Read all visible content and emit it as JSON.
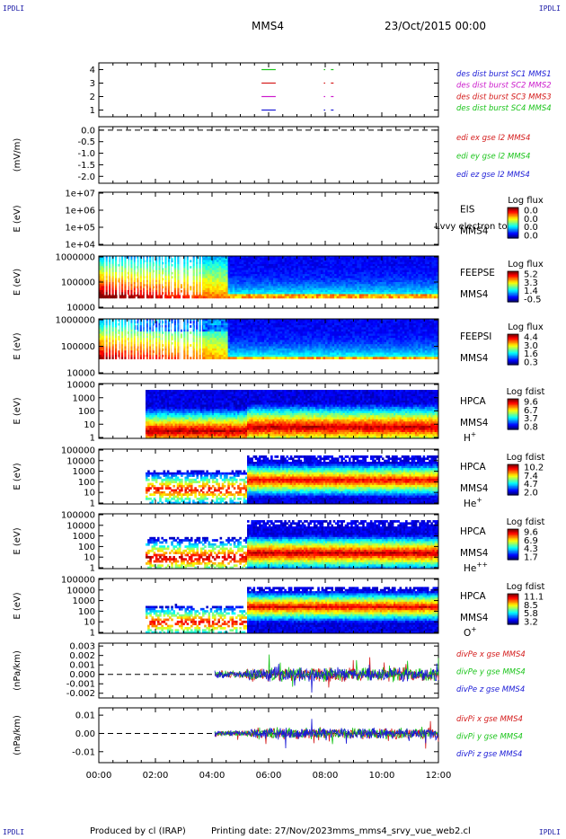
{
  "header": {
    "corner_label": "IPDLI",
    "spacecraft": "MMS4",
    "date_time": "23/Oct/2015 00:00"
  },
  "footer": {
    "produced_by": "Produced by cl (IRAP)",
    "printing_date": "Printing date: 27/Nov/2023",
    "file_name": "mms_mms4_srvy_vue_web2.cl"
  },
  "time_axis": {
    "ticks": [
      "00:00",
      "02:00",
      "04:00",
      "06:00",
      "08:00",
      "10:00",
      "12:00"
    ],
    "range_hours": [
      0,
      12
    ]
  },
  "colors": {
    "axis": "#000000",
    "frame": "#000000",
    "mms1": "#1a1ad6",
    "mms2": "#cc1acc",
    "mms3": "#d41a1a",
    "mms4": "#1ac41a",
    "corner": "#1a1aa6"
  },
  "chart_data": [
    {
      "type": "line",
      "id": "burst",
      "ylabel": "",
      "yticks": [
        "4",
        "3",
        "2",
        "1"
      ],
      "ylim": [
        0.5,
        4.5
      ],
      "legend": [
        {
          "text": "des dist burst SC1 MMS1",
          "color": "#1a1ad6"
        },
        {
          "text": "des dist burst SC2 MMS2",
          "color": "#cc1acc"
        },
        {
          "text": "des dist burst SC3 MMS3",
          "color": "#d41a1a"
        },
        {
          "text": "des dist burst SC4 MMS4",
          "color": "#1ac41a"
        }
      ],
      "series": [
        {
          "level": 4,
          "color": "#1ac41a",
          "intervals": [
            [
              5.75,
              6.25
            ],
            [
              7.95,
              8.0
            ],
            [
              8.2,
              8.3
            ]
          ]
        },
        {
          "level": 3,
          "color": "#d41a1a",
          "intervals": [
            [
              5.75,
              6.25
            ],
            [
              7.95,
              8.0
            ],
            [
              8.2,
              8.3
            ]
          ]
        },
        {
          "level": 2,
          "color": "#cc1acc",
          "intervals": [
            [
              5.75,
              6.25
            ],
            [
              7.95,
              8.0
            ],
            [
              8.2,
              8.3
            ]
          ]
        },
        {
          "level": 1,
          "color": "#1a1ad6",
          "intervals": [
            [
              5.75,
              6.25
            ],
            [
              7.95,
              8.0
            ],
            [
              8.2,
              8.3
            ]
          ]
        }
      ]
    },
    {
      "type": "line",
      "id": "edi",
      "ylabel": "(mV/m)",
      "yticks": [
        "0.0",
        "-0.5",
        "-1.0",
        "-1.5",
        "-2.0"
      ],
      "ylim": [
        -2.3,
        0.15
      ],
      "legend": [
        {
          "text": "edi ex gse l2 MMS4",
          "color": "#d41a1a"
        },
        {
          "text": "edi ey gse l2 MMS4",
          "color": "#1ac41a"
        },
        {
          "text": "edi ez gse l2 MMS4",
          "color": "#1a1ad6"
        }
      ],
      "dashed_zero": true
    },
    {
      "type": "heatmap",
      "id": "eis",
      "ylabel": "E (eV)",
      "yticks": [
        "1e+07",
        "1e+06",
        "1e+05",
        "1e+04"
      ],
      "instrument": [
        "EIS",
        "MMS4"
      ],
      "overlay_text": "Lvvy electron to",
      "colorbar": {
        "title": "Log flux",
        "ticks": [
          "0.0",
          "0.0",
          "0.0",
          "0.0"
        ]
      },
      "empty": true
    },
    {
      "type": "heatmap",
      "id": "feepse",
      "ylabel": "E (eV)",
      "yticks": [
        "1000000",
        "100000",
        "10000"
      ],
      "instrument": [
        "FEEPSE",
        "MMS4"
      ],
      "colorbar": {
        "title": "Log flux",
        "ticks": [
          "5.2",
          "3.3",
          "1.4",
          "-0.5"
        ]
      },
      "data_start_hour": 0.0,
      "levels": [
        {
          "from_hour": 0.0,
          "to_hour": 3.0,
          "profile": "hot"
        },
        {
          "from_hour": 3.0,
          "to_hour": 5.2,
          "profile": "transition"
        },
        {
          "from_hour": 5.2,
          "to_hour": 12.0,
          "profile": "cold"
        }
      ]
    },
    {
      "type": "heatmap",
      "id": "feepsi",
      "ylabel": "E (eV)",
      "yticks": [
        "1000000",
        "100000",
        "10000"
      ],
      "instrument": [
        "FEEPSI",
        "MMS4"
      ],
      "colorbar": {
        "title": "Log flux",
        "ticks": [
          "4.4",
          "3.0",
          "1.6",
          "0.3"
        ]
      },
      "data_start_hour": 0.0
    },
    {
      "type": "heatmap",
      "id": "hpca-h",
      "ylabel": "E (eV)",
      "yticks": [
        "10000",
        "1000",
        "100",
        "10",
        "1"
      ],
      "instrument": [
        "HPCA",
        "MMS4"
      ],
      "species": "H",
      "species_sup": "+",
      "colorbar": {
        "title": "Log fdist",
        "ticks": [
          "9.6",
          "6.7",
          "3.7",
          "0.8"
        ]
      },
      "data_start_hour": 1.65
    },
    {
      "type": "heatmap",
      "id": "hpca-he",
      "ylabel": "E (eV)",
      "yticks": [
        "100000",
        "10000",
        "1000",
        "100",
        "10",
        "1"
      ],
      "instrument": [
        "HPCA",
        "MMS4"
      ],
      "species": "He",
      "species_sup": "+",
      "colorbar": {
        "title": "Log fdist",
        "ticks": [
          "10.2",
          "7.4",
          "4.7",
          "2.0"
        ]
      },
      "data_start_hour": 1.65
    },
    {
      "type": "heatmap",
      "id": "hpca-he2",
      "ylabel": "E (eV)",
      "yticks": [
        "100000",
        "10000",
        "1000",
        "100",
        "10",
        "1"
      ],
      "instrument": [
        "HPCA",
        "MMS4"
      ],
      "species": "He",
      "species_sup": "++",
      "colorbar": {
        "title": "Log fdist",
        "ticks": [
          "9.6",
          "6.9",
          "4.3",
          "1.7"
        ]
      },
      "data_start_hour": 1.65
    },
    {
      "type": "heatmap",
      "id": "hpca-o",
      "ylabel": "E (eV)",
      "yticks": [
        "100000",
        "10000",
        "1000",
        "100",
        "10",
        "1"
      ],
      "instrument": [
        "HPCA",
        "MMS4"
      ],
      "species": "O",
      "species_sup": "+",
      "colorbar": {
        "title": "Log fdist",
        "ticks": [
          "11.1",
          "8.5",
          "5.8",
          "3.2"
        ]
      },
      "data_start_hour": 1.65
    },
    {
      "type": "line",
      "id": "divpe",
      "ylabel": "(nPa/km)",
      "yticks": [
        "0.003",
        "0.002",
        "0.001",
        "0.000",
        "-0.001",
        "-0.002"
      ],
      "ylim": [
        -0.0025,
        0.0033
      ],
      "legend": [
        {
          "text": "divPe x gse MMS4",
          "color": "#d41a1a"
        },
        {
          "text": "divPe y gse MMS4",
          "color": "#1ac41a"
        },
        {
          "text": "divPe z gse MMS4",
          "color": "#1a1ad6"
        }
      ],
      "dashed_zero": true,
      "data_start_hour": 4.1,
      "amplitude": 0.0006
    },
    {
      "type": "line",
      "id": "divpi",
      "ylabel": "(nPa/km)",
      "yticks": [
        "0.01",
        "0.00",
        "-0.01"
      ],
      "ylim": [
        -0.016,
        0.014
      ],
      "legend": [
        {
          "text": "divPi x gse MMS4",
          "color": "#d41a1a"
        },
        {
          "text": "divPi y gse MMS4",
          "color": "#1ac41a"
        },
        {
          "text": "divPi z gse MMS4",
          "color": "#1a1ad6"
        }
      ],
      "dashed_zero": true,
      "data_start_hour": 4.1,
      "amplitude": 0.0025
    }
  ]
}
